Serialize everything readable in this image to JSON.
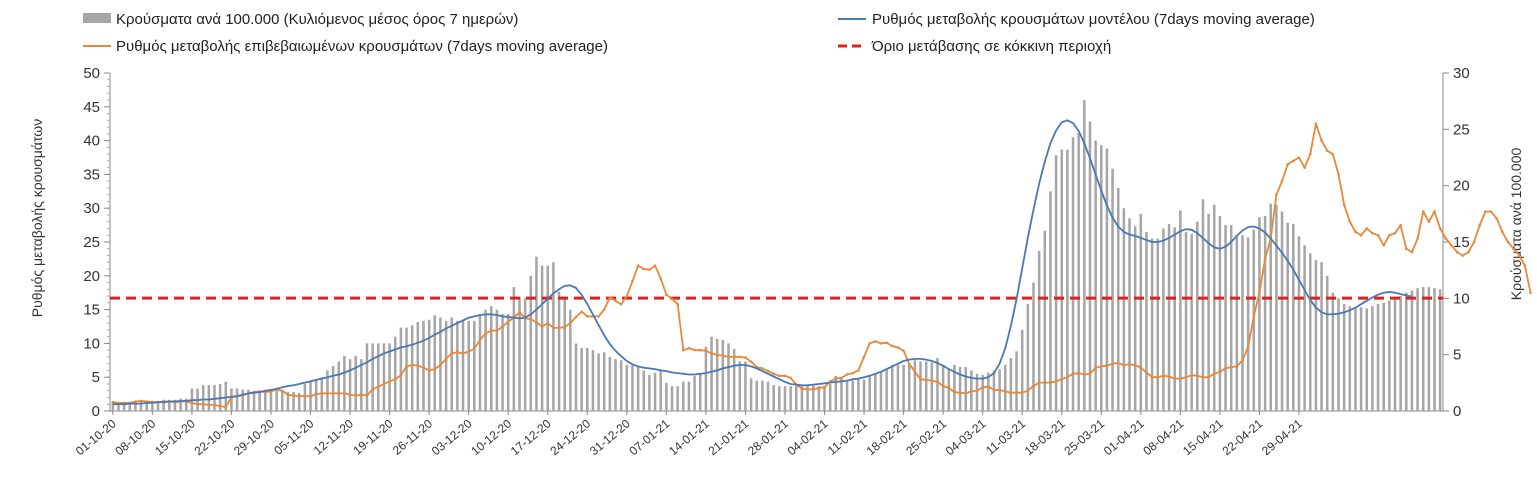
{
  "chart_data": {
    "type": "bar+line",
    "title": "",
    "ylabel_left": "Ρυθμός μεταβολής κρουσμάτων",
    "ylabel_right": "Κρούσματα ανά 100.000",
    "ylim_left": [
      0,
      50
    ],
    "ylim_right": [
      0,
      30
    ],
    "yticks_left": [
      0,
      5,
      10,
      15,
      20,
      25,
      30,
      35,
      40,
      45,
      50
    ],
    "yticks_right": [
      0,
      5,
      10,
      15,
      20,
      25,
      30
    ],
    "grid": false,
    "legend_position": "top",
    "colors": {
      "bars": "#a6a6a6",
      "model_line": "#4a78b5",
      "confirmed_line": "#e8883a",
      "threshold_line": "#e02020",
      "axis": "#888888"
    },
    "legend": {
      "bars": "Κρούσματα ανά 100.000 (Κυλιόμενος μέσος όρος 7 ημερών)",
      "model_line": "Ρυθμός μεταβολής κρουσμάτων μοντέλου (7days moving average)",
      "confirmed_line": "Ρυθμός μεταβολής επιβεβαιωμένων κρουσμάτων (7days moving average)",
      "threshold_line": "Όριο μετάβασης σε κόκκινη περιοχή"
    },
    "x_tick_labels": [
      "01-10-20",
      "08-10-20",
      "15-10-20",
      "22-10-20",
      "29-10-20",
      "05-11-20",
      "12-11-20",
      "19-11-20",
      "26-11-20",
      "03-12-20",
      "10-12-20",
      "17-12-20",
      "24-12-20",
      "31-12-20",
      "07-01-21",
      "14-01-21",
      "21-01-21",
      "28-01-21",
      "04-02-21",
      "11-02-21",
      "18-02-21",
      "25-02-21",
      "04-03-21",
      "11-03-21",
      "18-03-21",
      "25-03-21",
      "01-04-21",
      "08-04-21",
      "15-04-21",
      "22-04-21",
      "29-04-21"
    ],
    "threshold_left_axis": 16.7,
    "series": [
      {
        "name": "Κρούσματα ανά 100.000 (Κυλιόμενος μέσος όρος 7 ημερών)",
        "axis": "right",
        "kind": "bar",
        "values": [
          0.8,
          0.8,
          0.8,
          0.8,
          0.8,
          0.9,
          0.9,
          0.9,
          0.9,
          1.0,
          1.0,
          1.0,
          1.1,
          1.1,
          2.0,
          2.0,
          2.3,
          2.3,
          2.3,
          2.4,
          2.6,
          2.0,
          2.0,
          1.9,
          1.9,
          1.7,
          1.7,
          1.7,
          1.7,
          1.8,
          1.8,
          1.7,
          1.7,
          1.6,
          2.4,
          2.6,
          2.8,
          3.0,
          3.6,
          4.0,
          4.4,
          4.9,
          4.6,
          4.9,
          4.6,
          6.0,
          6.0,
          6.0,
          6.0,
          6.0,
          6.6,
          7.4,
          7.4,
          7.6,
          7.9,
          8.0,
          8.1,
          8.5,
          8.3,
          8.0,
          8.3,
          8.0,
          8.1,
          8.0,
          8.0,
          8.6,
          9.0,
          9.3,
          9.0,
          8.6,
          8.6,
          11.0,
          10.1,
          10.0,
          12.0,
          13.7,
          12.9,
          12.9,
          13.2,
          10.6,
          9.9,
          9.0,
          6.0,
          5.6,
          5.6,
          5.4,
          5.1,
          5.2,
          4.8,
          4.6,
          4.5,
          4.1,
          4.1,
          3.9,
          3.6,
          3.2,
          3.4,
          3.6,
          2.5,
          2.2,
          2.2,
          2.6,
          2.6,
          3.1,
          3.3,
          5.7,
          6.6,
          6.4,
          6.3,
          6.0,
          5.5,
          4.4,
          4.4,
          2.9,
          2.7,
          2.7,
          2.6,
          2.3,
          2.2,
          2.2,
          2.2,
          2.2,
          2.2,
          2.2,
          2.3,
          2.2,
          2.2,
          2.4,
          3.1,
          2.9,
          2.7,
          2.7,
          2.8,
          2.8,
          3.1,
          3.3,
          3.5,
          3.7,
          4.1,
          4.1,
          4.1,
          4.1,
          4.5,
          4.4,
          4.4,
          4.3,
          4.7,
          4.1,
          3.7,
          4.1,
          3.9,
          3.9,
          3.6,
          3.3,
          3.2,
          3.4,
          3.6,
          3.7,
          4.1,
          4.7,
          5.3,
          7.2,
          9.5,
          11.4,
          14.2,
          16.0,
          19.5,
          22.7,
          23.2,
          23.2,
          24.3,
          24.7,
          27.6,
          25.7,
          24.0,
          23.6,
          23.3,
          21.5,
          19.8,
          18.0,
          17.1,
          16.4,
          17.5,
          15.9,
          15.3,
          15.3,
          16.2,
          16.6,
          16.3,
          17.8,
          15.9,
          15.7,
          16.8,
          18.8,
          17.5,
          18.3,
          17.3,
          16.5,
          16.5,
          15.6,
          15.6,
          15.4,
          16.1,
          17.2,
          17.3,
          18.4,
          18.3,
          17.7,
          16.7,
          16.6,
          15.5,
          14.7,
          14.0,
          13.4,
          13.2,
          12.0,
          10.5,
          10.0,
          9.5,
          9.3,
          9.1,
          9.2,
          9.1,
          9.3,
          9.5,
          9.6,
          9.8,
          10.0,
          10.2,
          10.5,
          10.7,
          10.9,
          11.0,
          11.0,
          10.9,
          10.8
        ]
      },
      {
        "name": "Ρυθμός μεταβολής κρουσμάτων μοντέλου (7days moving average)",
        "axis": "left",
        "kind": "line",
        "values": [
          1.0,
          1.0,
          1.0,
          1.1,
          1.1,
          1.1,
          1.2,
          1.2,
          1.3,
          1.3,
          1.4,
          1.4,
          1.5,
          1.5,
          1.6,
          1.6,
          1.7,
          1.7,
          1.8,
          1.9,
          2.0,
          2.1,
          2.2,
          2.4,
          2.6,
          2.7,
          2.8,
          3.0,
          3.1,
          3.3,
          3.5,
          3.7,
          3.8,
          4.0,
          4.2,
          4.4,
          4.6,
          4.8,
          5.0,
          5.2,
          5.4,
          5.7,
          6.0,
          6.4,
          6.8,
          7.2,
          7.7,
          8.1,
          8.5,
          8.8,
          9.1,
          9.4,
          9.6,
          9.8,
          10.1,
          10.4,
          10.8,
          11.3,
          11.7,
          12.2,
          12.6,
          13.0,
          13.4,
          13.8,
          14.0,
          14.2,
          14.3,
          14.3,
          14.2,
          14.0,
          13.9,
          13.8,
          13.7,
          13.8,
          14.3,
          15.0,
          15.8,
          16.6,
          17.4,
          18.0,
          18.5,
          18.6,
          18.2,
          17.2,
          15.8,
          14.3,
          12.7,
          11.2,
          9.9,
          8.9,
          8.1,
          7.4,
          6.9,
          6.6,
          6.4,
          6.3,
          6.2,
          6.0,
          5.9,
          5.7,
          5.6,
          5.5,
          5.4,
          5.4,
          5.5,
          5.6,
          5.8,
          6.0,
          6.3,
          6.5,
          6.7,
          6.8,
          6.8,
          6.6,
          6.3,
          5.9,
          5.5,
          5.1,
          4.7,
          4.3,
          4.0,
          3.9,
          3.8,
          3.8,
          3.9,
          4.0,
          4.1,
          4.2,
          4.3,
          4.4,
          4.5,
          4.7,
          4.8,
          5.0,
          5.2,
          5.5,
          5.8,
          6.2,
          6.6,
          7.0,
          7.4,
          7.6,
          7.7,
          7.7,
          7.6,
          7.4,
          7.1,
          6.7,
          6.2,
          5.8,
          5.4,
          5.1,
          4.9,
          4.8,
          4.8,
          5.0,
          5.6,
          7.0,
          9.3,
          12.6,
          16.6,
          21.1,
          25.6,
          29.8,
          33.6,
          36.9,
          39.6,
          41.5,
          42.7,
          43.0,
          42.6,
          41.4,
          39.6,
          37.4,
          35.0,
          32.6,
          30.4,
          28.6,
          27.3,
          26.5,
          26.1,
          25.9,
          25.6,
          25.3,
          25.0,
          25.0,
          25.2,
          25.6,
          26.1,
          26.6,
          26.9,
          26.8,
          26.3,
          25.6,
          24.8,
          24.2,
          24.0,
          24.3,
          25.0,
          25.9,
          26.7,
          27.2,
          27.3,
          27.0,
          26.4,
          25.5,
          24.5,
          23.4,
          22.2,
          20.9,
          19.4,
          17.9,
          16.4,
          15.3,
          14.6,
          14.3,
          14.3,
          14.4,
          14.6,
          14.9,
          15.3,
          15.8,
          16.3,
          16.8,
          17.2,
          17.5,
          17.6,
          17.5,
          17.3,
          17.1,
          16.9
        ]
      },
      {
        "name": "Ρυθμός μεταβολής επιβεβαιωμένων κρουσμάτων (7days moving average)",
        "axis": "left",
        "kind": "line",
        "values": [
          1.3,
          1.2,
          1.2,
          1.2,
          1.4,
          1.5,
          1.4,
          1.3,
          1.3,
          1.4,
          1.4,
          1.3,
          1.4,
          1.4,
          1.2,
          1.0,
          1.0,
          0.9,
          0.9,
          0.7,
          0.6,
          2.0,
          2.2,
          2.3,
          2.6,
          2.8,
          2.9,
          2.8,
          2.9,
          3.2,
          3.0,
          2.4,
          2.3,
          2.2,
          2.2,
          2.2,
          2.5,
          2.6,
          2.6,
          2.6,
          2.6,
          2.6,
          2.4,
          2.3,
          2.4,
          2.3,
          3.2,
          3.6,
          4.0,
          4.4,
          4.7,
          5.3,
          6.6,
          6.8,
          6.7,
          6.4,
          6.0,
          6.2,
          6.8,
          7.7,
          8.5,
          8.7,
          8.5,
          8.8,
          9.2,
          10.5,
          11.5,
          11.9,
          11.9,
          12.5,
          13.2,
          13.8,
          14.6,
          13.7,
          13.6,
          13.1,
          12.5,
          13.0,
          12.3,
          12.3,
          12.4,
          13.0,
          13.9,
          14.7,
          14.0,
          14.0,
          14.0,
          15.0,
          16.8,
          16.3,
          15.8,
          17.0,
          19.2,
          21.5,
          21.0,
          20.9,
          21.5,
          19.6,
          17.2,
          16.6,
          15.8,
          9.0,
          9.3,
          9.0,
          9.0,
          8.9,
          8.5,
          8.3,
          8.2,
          8.0,
          8.0,
          8.0,
          7.9,
          7.3,
          6.5,
          6.3,
          5.9,
          5.5,
          5.2,
          5.2,
          4.9,
          3.9,
          3.3,
          3.2,
          3.2,
          3.4,
          3.5,
          4.4,
          4.8,
          4.9,
          5.4,
          5.6,
          6.0,
          8.0,
          10.0,
          10.3,
          10.0,
          10.1,
          9.6,
          9.4,
          8.9,
          7.0,
          5.8,
          4.7,
          4.6,
          4.5,
          4.3,
          3.7,
          3.4,
          2.8,
          2.7,
          2.6,
          2.9,
          3.0,
          3.5,
          3.6,
          3.1,
          3.1,
          2.9,
          2.7,
          2.7,
          2.7,
          3.0,
          3.7,
          4.2,
          4.2,
          4.2,
          4.4,
          4.7,
          5.0,
          5.5,
          5.6,
          5.4,
          5.5,
          6.4,
          6.6,
          6.7,
          7.0,
          7.1,
          6.8,
          6.9,
          6.8,
          6.4,
          5.7,
          5.0,
          5.0,
          5.2,
          5.1,
          4.8,
          4.8,
          5.0,
          5.3,
          5.2,
          5.0,
          5.0,
          5.5,
          5.8,
          6.3,
          6.5,
          6.6,
          7.5,
          9.5,
          14.0,
          17.5,
          22.5,
          25.5,
          32.0,
          34.0,
          36.5,
          37.0,
          37.5,
          36.0,
          38.0,
          42.5,
          40.0,
          38.5,
          38.0,
          35.0,
          30.5,
          28.0,
          26.5,
          26.0,
          27.0,
          26.3,
          26.0,
          24.5,
          26.0,
          26.3,
          27.5,
          24.0,
          23.5,
          25.5,
          29.5,
          28.0,
          29.5,
          27.0,
          25.5,
          24.5,
          23.5,
          23.0,
          23.5,
          25.0,
          27.5,
          29.5,
          29.5,
          28.5,
          26.5,
          25.0,
          24.0,
          23.0,
          21.5,
          17.5
        ]
      }
    ]
  }
}
